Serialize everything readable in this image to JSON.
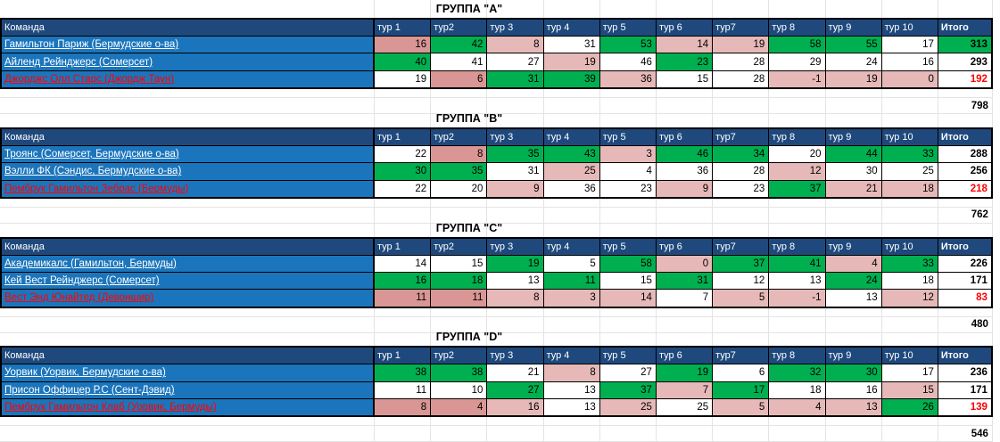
{
  "colors": {
    "green": "#00B050",
    "pink_light": "#E6B9B8",
    "pink_dark": "#D99694",
    "white": "#FFFFFF",
    "team_row_blue": "#1B75BC",
    "header_navy": "#1F497D",
    "negative_red": "#FF0000"
  },
  "columns": {
    "team": "Команда",
    "rounds": [
      "тур 1",
      "тур2",
      "тур 3",
      "тур 4",
      "тур 5",
      "тур 6",
      "тур7",
      "тур 8",
      "тур 9",
      "тур 10"
    ],
    "total": "Итого"
  },
  "groups": [
    {
      "title": "ГРУППА \"A\"",
      "teams": [
        {
          "name": "Гамильтон Париж (Бермудские о-ва)",
          "name_red": false,
          "scores": [
            16,
            42,
            8,
            31,
            53,
            14,
            19,
            58,
            55,
            17
          ],
          "fills": [
            "d",
            "g",
            "p",
            "w",
            "g",
            "p",
            "p",
            "g",
            "g",
            "w"
          ],
          "total": 313,
          "total_fill": "g",
          "total_red": false
        },
        {
          "name": "Айленд Рейнджерс (Сомерсет)",
          "name_red": false,
          "scores": [
            40,
            41,
            27,
            19,
            46,
            23,
            28,
            29,
            24,
            16
          ],
          "fills": [
            "g",
            "w",
            "w",
            "p",
            "w",
            "g",
            "w",
            "w",
            "w",
            "w"
          ],
          "total": 293,
          "total_fill": "w",
          "total_red": false
        },
        {
          "name": "Джорджс Олл Старс (Джордж Таун)",
          "name_red": true,
          "scores": [
            19,
            6,
            31,
            39,
            36,
            15,
            28,
            -1,
            19,
            0
          ],
          "fills": [
            "w",
            "d",
            "g",
            "g",
            "p",
            "w",
            "w",
            "p",
            "p",
            "p"
          ],
          "total": 192,
          "total_fill": "w",
          "total_red": true
        }
      ],
      "group_total": 798
    },
    {
      "title": "ГРУППА \"B\"",
      "teams": [
        {
          "name": "Троянс (Сомерсет, Бермудские о-ва)",
          "name_red": false,
          "scores": [
            22,
            8,
            35,
            43,
            3,
            46,
            34,
            20,
            44,
            33
          ],
          "fills": [
            "w",
            "d",
            "g",
            "g",
            "p",
            "g",
            "g",
            "w",
            "g",
            "g"
          ],
          "total": 288,
          "total_fill": "w",
          "total_red": false
        },
        {
          "name": "Вэлли ФК (Сэндис, Бермудские о-ва)",
          "name_red": false,
          "scores": [
            30,
            35,
            31,
            25,
            4,
            36,
            28,
            12,
            30,
            25
          ],
          "fills": [
            "g",
            "g",
            "w",
            "p",
            "w",
            "w",
            "w",
            "p",
            "w",
            "w"
          ],
          "total": 256,
          "total_fill": "w",
          "total_red": false
        },
        {
          "name": "Пембрук Гамильтон Зебрас (Бермуды)",
          "name_red": true,
          "scores": [
            22,
            20,
            9,
            36,
            23,
            9,
            23,
            37,
            21,
            18
          ],
          "fills": [
            "w",
            "w",
            "p",
            "w",
            "w",
            "p",
            "w",
            "g",
            "p",
            "p"
          ],
          "total": 218,
          "total_fill": "w",
          "total_red": true
        }
      ],
      "group_total": 762
    },
    {
      "title": "ГРУППА \"C\"",
      "teams": [
        {
          "name": "Академикалс (Гамильтон, Бермуды)",
          "name_red": false,
          "scores": [
            14,
            15,
            19,
            5,
            58,
            0,
            37,
            41,
            4,
            33
          ],
          "fills": [
            "w",
            "w",
            "g",
            "w",
            "g",
            "p",
            "g",
            "g",
            "p",
            "g"
          ],
          "total": 226,
          "total_fill": "w",
          "total_red": false
        },
        {
          "name": "Кей Вест Рейнджерс (Сомерсет)",
          "name_red": false,
          "scores": [
            16,
            18,
            13,
            11,
            15,
            31,
            12,
            13,
            24,
            18
          ],
          "fills": [
            "g",
            "g",
            "w",
            "g",
            "w",
            "g",
            "w",
            "w",
            "g",
            "w"
          ],
          "total": 171,
          "total_fill": "w",
          "total_red": false
        },
        {
          "name": "Вест Энд Юнайтед (Девоншир)",
          "name_red": true,
          "scores": [
            11,
            11,
            8,
            3,
            14,
            7,
            5,
            -1,
            13,
            12
          ],
          "fills": [
            "d",
            "d",
            "p",
            "p",
            "p",
            "w",
            "p",
            "p",
            "w",
            "p"
          ],
          "total": 83,
          "total_fill": "w",
          "total_red": true
        }
      ],
      "group_total": 480
    },
    {
      "title": "ГРУППА \"D\"",
      "teams": [
        {
          "name": "Уорвик (Уорвик, Бермудские о-ва)",
          "name_red": false,
          "scores": [
            38,
            38,
            21,
            8,
            27,
            19,
            6,
            32,
            30,
            17
          ],
          "fills": [
            "g",
            "g",
            "w",
            "p",
            "w",
            "g",
            "w",
            "g",
            "g",
            "w"
          ],
          "total": 236,
          "total_fill": "w",
          "total_red": false
        },
        {
          "name": "Присон Оффицер Р.С (Сент-Дэвид)",
          "name_red": false,
          "scores": [
            11,
            10,
            27,
            13,
            37,
            7,
            17,
            18,
            16,
            15
          ],
          "fills": [
            "w",
            "w",
            "g",
            "w",
            "g",
            "p",
            "g",
            "w",
            "w",
            "p"
          ],
          "total": 171,
          "total_fill": "w",
          "total_red": false
        },
        {
          "name": "Пембрук Гамильтон Клаб (Уорвик, Бермуды)",
          "name_red": true,
          "scores": [
            8,
            4,
            16,
            13,
            25,
            25,
            5,
            4,
            13,
            26
          ],
          "fills": [
            "d",
            "d",
            "p",
            "w",
            "p",
            "w",
            "p",
            "p",
            "p",
            "g"
          ],
          "total": 139,
          "total_fill": "w",
          "total_red": true
        }
      ],
      "group_total": 546
    }
  ]
}
